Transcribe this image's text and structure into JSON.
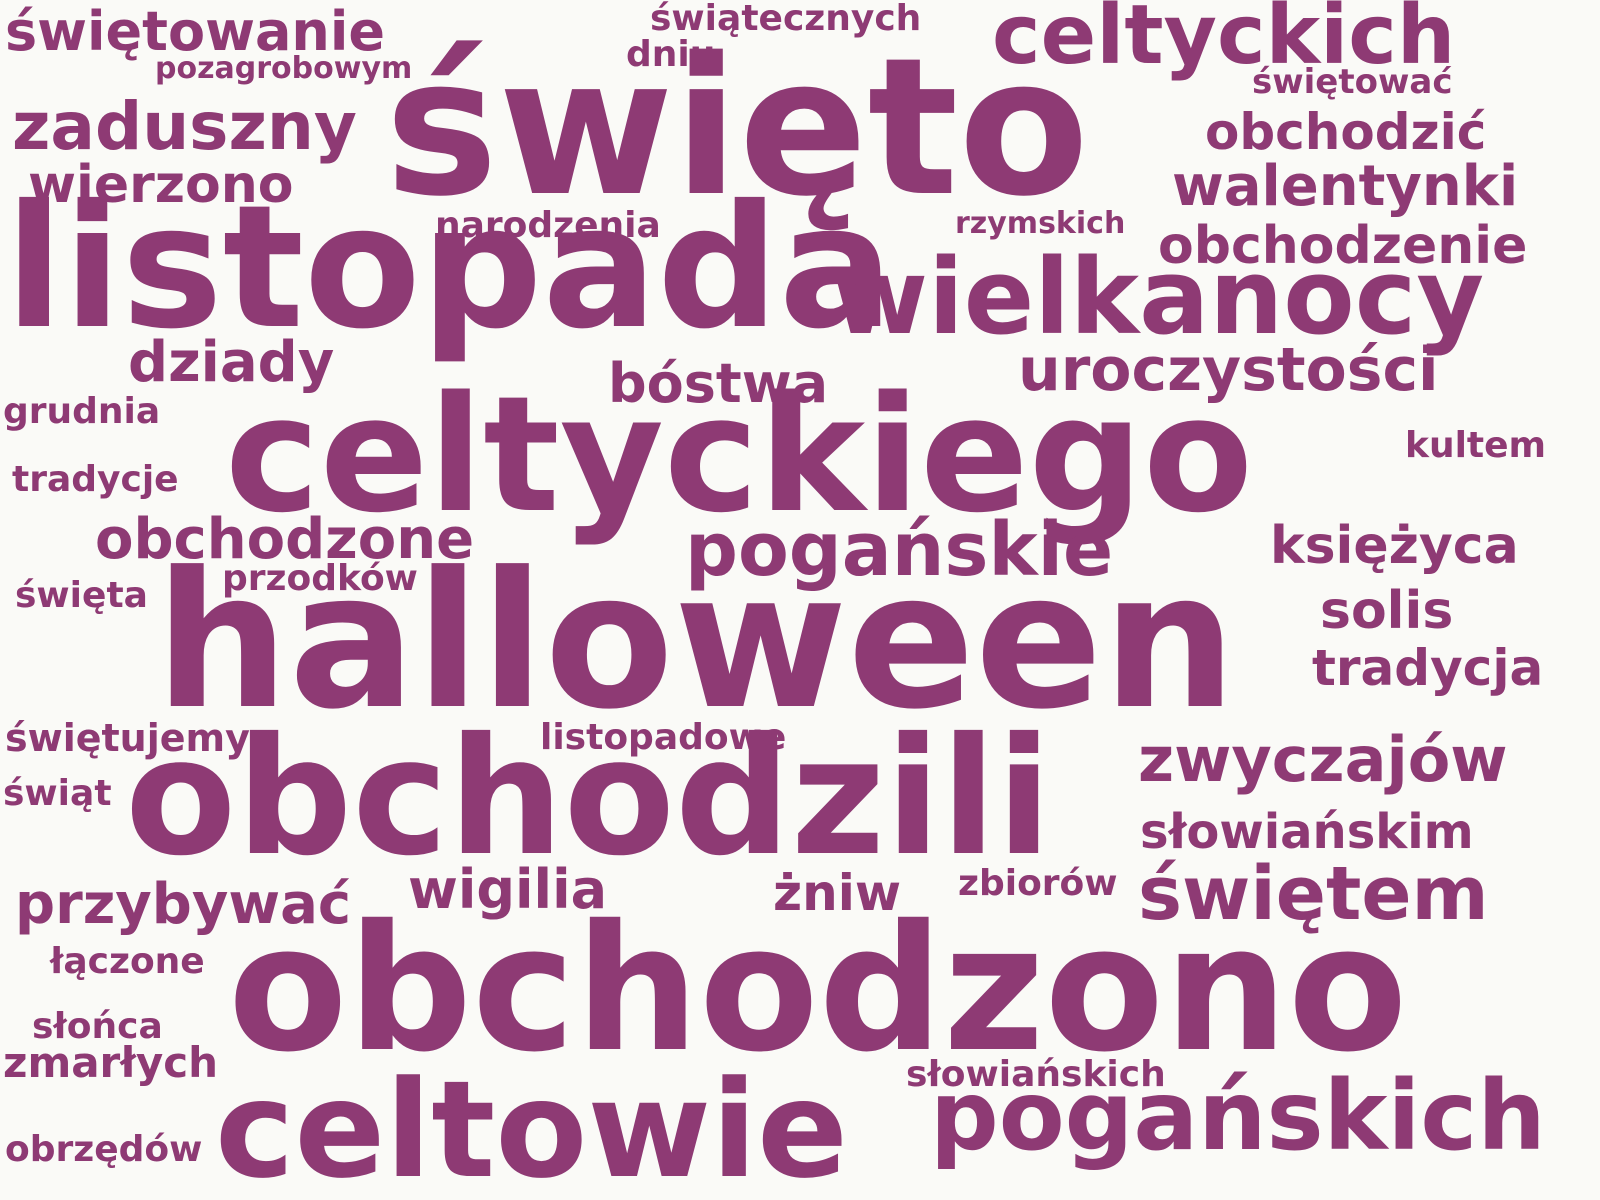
{
  "word_color": "#8e3a74",
  "background": "#fafaf7",
  "words": [
    "święto",
    "listopada",
    "celtyckiego",
    "halloween",
    "obchodzili",
    "obchodzono",
    "celtowie",
    "wielkanocy",
    "pogańskich",
    "celtyckich",
    "pogańskie",
    "zaduszny",
    "świętem",
    "uroczystości",
    "zwyczajów",
    "walentynki",
    "obchodzenie",
    "obchodzone",
    "przybywać",
    "wigilia",
    "obchodzić",
    "dziady",
    "bóstwa",
    "wierzono",
    "żniw",
    "księżyca",
    "tradycja",
    "świętowanie",
    "słowiańskim",
    "solis",
    "zmarłych",
    "listopadowe",
    "narodzenia",
    "świętujemy",
    "przodków",
    "zbiorów",
    "tradycje",
    "dniu",
    "świątecznych",
    "świętować",
    "słowiańskich",
    "grudnia",
    "łączone",
    "obrzędów",
    "kultem",
    "słońca",
    "święta",
    "pozagrobowym",
    "świąt",
    "rzymskich"
  ]
}
